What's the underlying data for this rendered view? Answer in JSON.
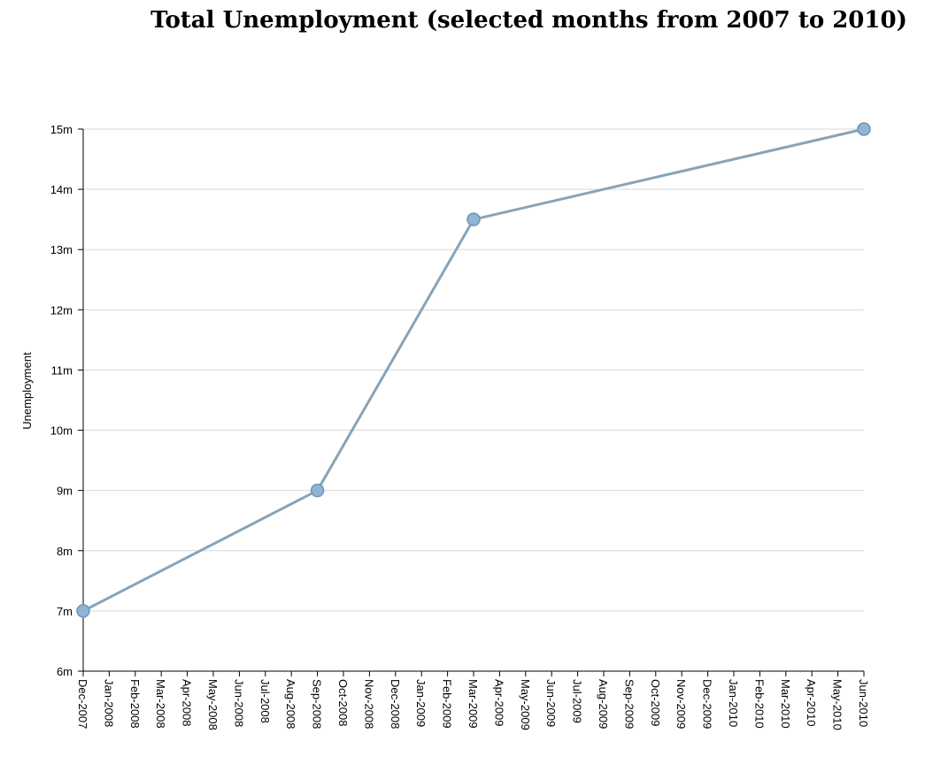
{
  "chart_data": {
    "type": "line",
    "title": "Total Unemployment (selected months from 2007 to 2010)",
    "xlabel": "",
    "ylabel": "Unemployment",
    "x_tick_labels": [
      "Dec-2007",
      "Jan-2008",
      "Feb-2008",
      "Mar-2008",
      "Apr-2008",
      "May-2008",
      "Jun-2008",
      "Jul-2008",
      "Aug-2008",
      "Sep-2008",
      "Oct-2008",
      "Nov-2008",
      "Dec-2008",
      "Jan-2009",
      "Feb-2009",
      "Mar-2009",
      "Apr-2009",
      "May-2009",
      "Jun-2009",
      "Jul-2009",
      "Aug-2009",
      "Sep-2009",
      "Oct-2009",
      "Nov-2009",
      "Dec-2009",
      "Jan-2010",
      "Feb-2010",
      "Mar-2010",
      "Apr-2010",
      "May-2010",
      "Jun-2010"
    ],
    "y_tick_labels": [
      "6m",
      "7m",
      "8m",
      "9m",
      "10m",
      "11m",
      "12m",
      "13m",
      "14m",
      "15m"
    ],
    "y_ticks": [
      6,
      7,
      8,
      9,
      10,
      11,
      12,
      13,
      14,
      15
    ],
    "ylim": [
      6,
      15
    ],
    "grid": "horizontal",
    "series": [
      {
        "x": [
          "Dec-2007",
          "Sep-2008",
          "Mar-2009",
          "Jun-2010"
        ],
        "values": [
          7,
          9,
          13.5,
          15
        ]
      }
    ],
    "colors": {
      "line": "#87a4b8",
      "marker_fill": "#8fb4d6",
      "marker_stroke": "#6f95b8",
      "grid": "#d9d9d9"
    }
  }
}
